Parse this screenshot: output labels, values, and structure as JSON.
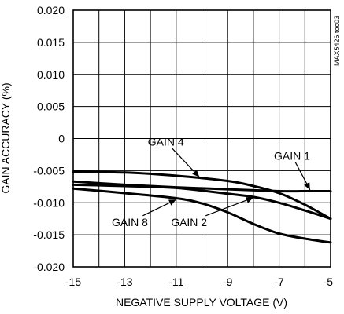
{
  "chart_data": {
    "type": "line",
    "title": "",
    "xlabel": "NEGATIVE SUPPLY VOLTAGE (V)",
    "ylabel": "GAIN ACCURACY (%)",
    "xlim": [
      -15,
      -5
    ],
    "ylim": [
      -0.02,
      0.02
    ],
    "grid": true,
    "x_ticks": [
      -15,
      -13,
      -11,
      -9,
      -7,
      -5
    ],
    "x_tick_labels": [
      "-15",
      "-13",
      "-11",
      "-9",
      "-7",
      "-5"
    ],
    "y_ticks": [
      0.02,
      0.015,
      0.01,
      0.005,
      0,
      -0.005,
      -0.01,
      -0.015,
      -0.02
    ],
    "y_tick_labels": [
      "0.020",
      "0.015",
      "0.010",
      "0.005",
      "0",
      "-0.005",
      "-0.010",
      "-0.015",
      "-0.020"
    ],
    "side_note": "MAX5426 toc03",
    "series": [
      {
        "name": "GAIN 4",
        "x": [
          -15,
          -13,
          -11,
          -9,
          -8,
          -7,
          -6,
          -5
        ],
        "y": [
          -0.0052,
          -0.0053,
          -0.0058,
          -0.0066,
          -0.0074,
          -0.0085,
          -0.0103,
          -0.0125
        ]
      },
      {
        "name": "GAIN 1",
        "x": [
          -15,
          -13,
          -11,
          -9,
          -7,
          -6,
          -5
        ],
        "y": [
          -0.0067,
          -0.0072,
          -0.0076,
          -0.0079,
          -0.0082,
          -0.0082,
          -0.0082
        ]
      },
      {
        "name": "GAIN 2",
        "x": [
          -15,
          -13,
          -11,
          -9,
          -8,
          -7,
          -6,
          -5
        ],
        "y": [
          -0.0072,
          -0.0074,
          -0.0077,
          -0.0086,
          -0.0091,
          -0.01,
          -0.0112,
          -0.0125
        ]
      },
      {
        "name": "GAIN 8",
        "x": [
          -15,
          -13,
          -11,
          -10,
          -9,
          -8,
          -7,
          -6,
          -5
        ],
        "y": [
          -0.0078,
          -0.0085,
          -0.0093,
          -0.0101,
          -0.0115,
          -0.0133,
          -0.0148,
          -0.0156,
          -0.0162
        ]
      }
    ],
    "annotations": [
      {
        "label": "GAIN 4",
        "series": "GAIN 4",
        "label_x": -11.4,
        "label_y": -0.0005,
        "target_x": -10.1,
        "target_y": -0.006
      },
      {
        "label": "GAIN 1",
        "series": "GAIN 1",
        "label_x": -6.5,
        "label_y": -0.0027,
        "target_x": -5.8,
        "target_y": -0.008
      },
      {
        "label": "GAIN 8",
        "series": "GAIN 8",
        "label_x": -12.8,
        "label_y": -0.013,
        "target_x": -11.0,
        "target_y": -0.0095
      },
      {
        "label": "GAIN 2",
        "series": "GAIN 2",
        "label_x": -10.5,
        "label_y": -0.013,
        "target_x": -8.0,
        "target_y": -0.0092
      }
    ]
  }
}
